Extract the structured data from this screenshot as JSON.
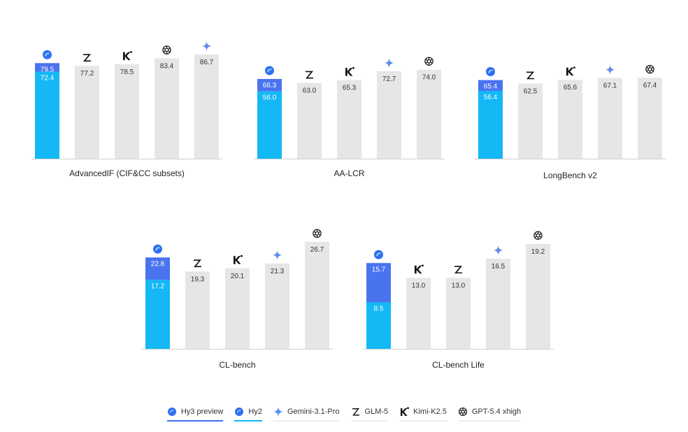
{
  "legend": {
    "items": [
      {
        "key": "hy3",
        "label": "Hy3 preview",
        "icon": "hunyuan-logo-icon"
      },
      {
        "key": "hy2",
        "label": "Hy2",
        "icon": "hunyuan-logo-icon"
      },
      {
        "key": "gemini",
        "label": "Gemini-3.1-Pro",
        "icon": "gemini-logo-icon"
      },
      {
        "key": "glm",
        "label": "GLM-5",
        "icon": "zhipu-z-logo-icon"
      },
      {
        "key": "kimi",
        "label": "Kimi-K2.5",
        "icon": "kimi-k-logo-icon"
      },
      {
        "key": "gpt",
        "label": "GPT-5.4 xhigh",
        "icon": "openai-logo-icon"
      }
    ]
  },
  "colors": {
    "hy3": "#4a73f0",
    "hy2": "#13b8f5",
    "other_bar": "#e6e6e6",
    "value_text": "#333333",
    "value_text_on_color": "#ffffff"
  },
  "chart_data": [
    {
      "type": "bar",
      "title": "AdvancedIF (CIF&CC subsets)",
      "ylim": [
        0,
        100
      ],
      "bars": [
        {
          "model": "hy",
          "hy3": 79.5,
          "hy2": 72.4
        },
        {
          "model": "glm",
          "value": 77.2
        },
        {
          "model": "kimi",
          "value": 78.5
        },
        {
          "model": "gpt",
          "value": 83.4
        },
        {
          "model": "gemini",
          "value": 86.7
        }
      ]
    },
    {
      "type": "bar",
      "title": "AA-LCR",
      "ylim": [
        0,
        100
      ],
      "bars": [
        {
          "model": "hy",
          "hy3": 66.3,
          "hy2": 56.0
        },
        {
          "model": "glm",
          "value": 63.0
        },
        {
          "model": "kimi",
          "value": 65.3
        },
        {
          "model": "gemini",
          "value": 72.7
        },
        {
          "model": "gpt",
          "value": 74.0
        }
      ]
    },
    {
      "type": "bar",
      "title": "LongBench v2",
      "ylim": [
        0,
        100
      ],
      "bars": [
        {
          "model": "hy",
          "hy3": 65.4,
          "hy2": 56.4
        },
        {
          "model": "glm",
          "value": 62.5
        },
        {
          "model": "kimi",
          "value": 65.6
        },
        {
          "model": "gemini",
          "value": 67.1
        },
        {
          "model": "gpt",
          "value": 67.4
        }
      ]
    },
    {
      "type": "bar",
      "title": "CL-bench",
      "ylim": [
        0,
        30
      ],
      "bars": [
        {
          "model": "hy",
          "hy3": 22.8,
          "hy2": 17.2
        },
        {
          "model": "glm",
          "value": 19.3
        },
        {
          "model": "kimi",
          "value": 20.1
        },
        {
          "model": "gemini",
          "value": 21.3
        },
        {
          "model": "gpt",
          "value": 26.7
        }
      ]
    },
    {
      "type": "bar",
      "title": "CL-bench Life",
      "ylim": [
        0,
        22
      ],
      "bars": [
        {
          "model": "hy",
          "hy3": 15.7,
          "hy2": 8.5
        },
        {
          "model": "kimi",
          "value": 13.0
        },
        {
          "model": "glm",
          "value": 13.0
        },
        {
          "model": "gemini",
          "value": 16.5
        },
        {
          "model": "gpt",
          "value": 19.2
        }
      ]
    }
  ]
}
